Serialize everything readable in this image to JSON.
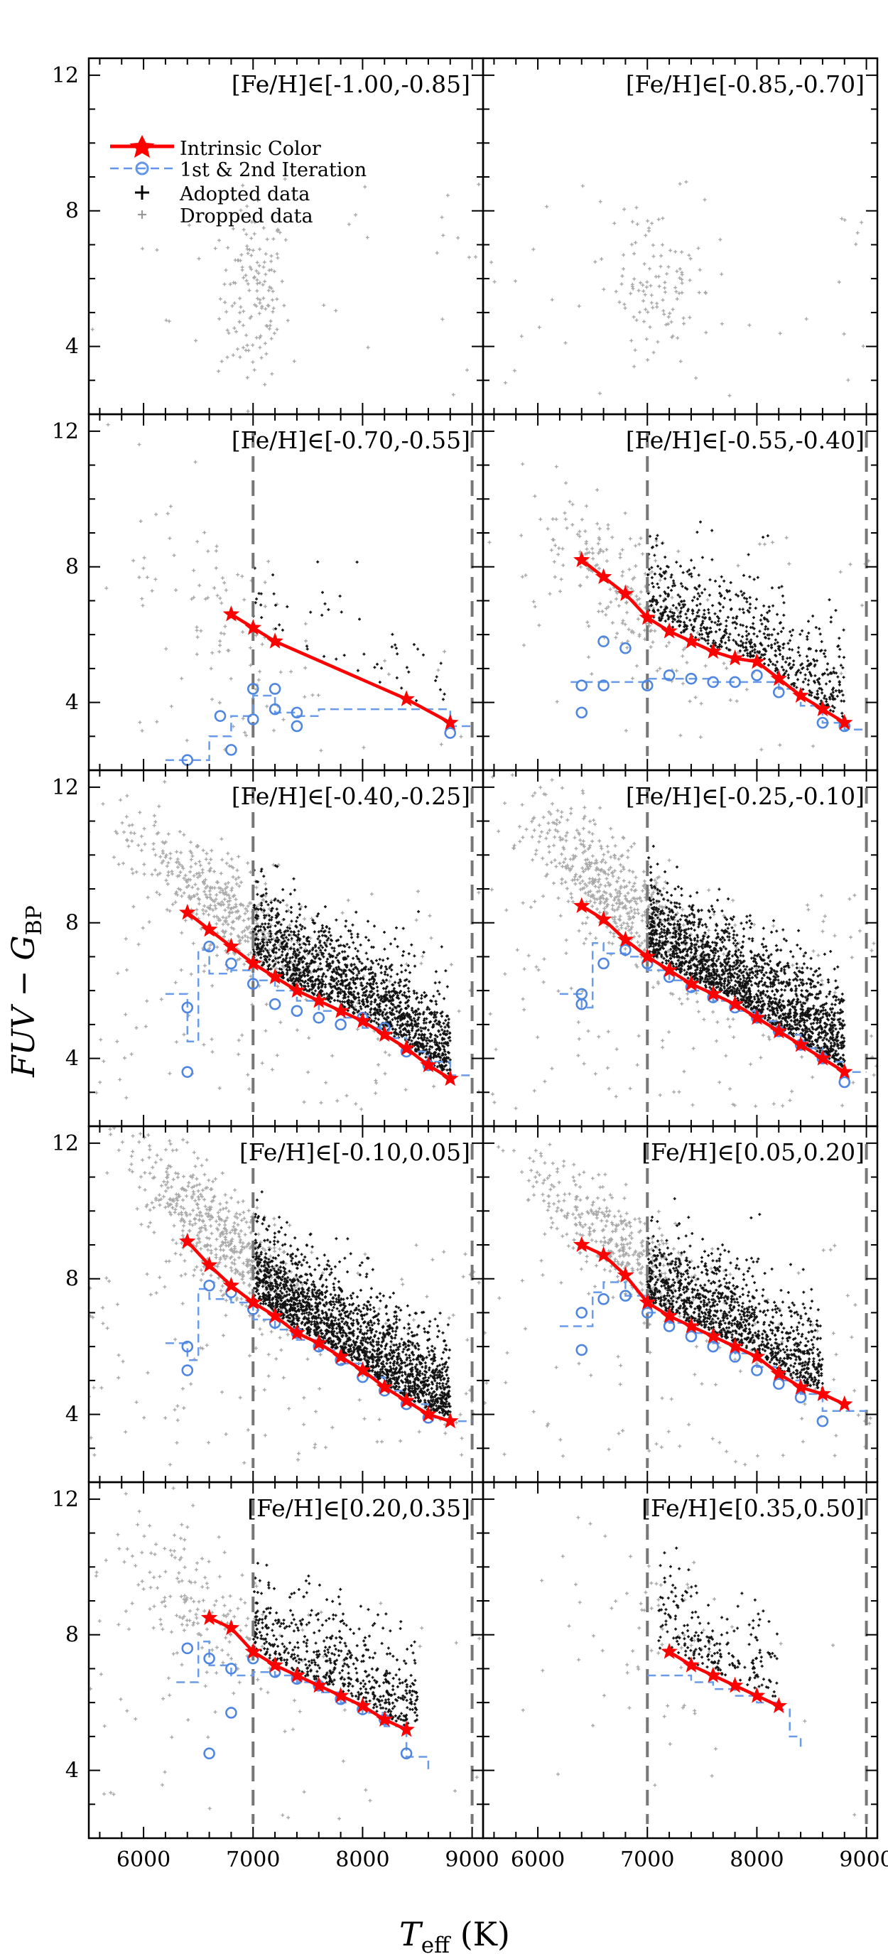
{
  "chart_data": {
    "type": "scatter",
    "layout": "5 rows x 2 columns, shared axes",
    "xlabel_main": "T",
    "xlabel_sub": "eff",
    "xlabel_unit": "(K)",
    "ylabel_main": "FUV − G",
    "ylabel_sub": "BP",
    "xlim": [
      5500,
      9100
    ],
    "ylim": [
      2.0,
      12.5
    ],
    "x_ticks": [
      "6000",
      "7000",
      "8000",
      "9000"
    ],
    "y_ticks": [
      "4",
      "8",
      "12"
    ],
    "vertical_cuts": [
      7000,
      9000
    ],
    "legend": {
      "location": "upper-left of first panel",
      "entries": [
        {
          "label": "Intrinsic Color",
          "color": "#ff0000",
          "marker": "star"
        },
        {
          "label": "1st & 2nd Iteration",
          "color": "#6495ed",
          "marker": "open-circle"
        },
        {
          "label": "Adopted data",
          "color": "#000000",
          "marker": "plus"
        },
        {
          "label": "Dropped data",
          "color": "#a0a0a0",
          "marker": "small-plus"
        }
      ]
    },
    "panels": [
      {
        "label": "[Fe/H]∈[-1.00,-0.85]",
        "intrinsic": {
          "x": [],
          "y": []
        },
        "iter_circles": {
          "x": [],
          "y": []
        },
        "iter_steps": {
          "x": [],
          "y": []
        },
        "dropped": {
          "center": [
            7000,
            5.5
          ],
          "spread": [
            150,
            1.3
          ],
          "count": 140,
          "slope": 0
        },
        "adopted": null,
        "show_cuts": false
      },
      {
        "label": "[Fe/H]∈[-0.85,-0.70]",
        "intrinsic": {
          "x": [],
          "y": []
        },
        "iter_circles": {
          "x": [],
          "y": []
        },
        "iter_steps": {
          "x": [],
          "y": []
        },
        "dropped": {
          "center": [
            7100,
            5.8
          ],
          "spread": [
            250,
            1.1
          ],
          "count": 120,
          "slope": 0
        },
        "adopted": null,
        "show_cuts": false
      },
      {
        "label": "[Fe/H]∈[-0.70,-0.55]",
        "intrinsic": {
          "x": [
            6800,
            7000,
            7200,
            8400,
            8800
          ],
          "y": [
            6.6,
            6.2,
            5.8,
            4.1,
            3.4
          ]
        },
        "iter_circles": {
          "x": [
            6400,
            6700,
            6800,
            7000,
            7000,
            7200,
            7200,
            7400,
            7400,
            8800
          ],
          "y": [
            2.3,
            3.6,
            2.6,
            4.4,
            3.5,
            4.4,
            3.8,
            3.7,
            3.3,
            3.1
          ]
        },
        "iter_steps": {
          "x": [
            6200,
            6500,
            6600,
            6800,
            7000,
            7200,
            7400,
            7600,
            8800,
            9000
          ],
          "y": [
            2.3,
            2.3,
            3.0,
            3.6,
            4.2,
            3.7,
            3.6,
            3.8,
            3.3,
            3.3
          ]
        },
        "dropped": {
          "center": [
            6700,
            6.5
          ],
          "spread": [
            400,
            1.8
          ],
          "count": 90,
          "slope": -2.4
        },
        "adopted": {
          "xrange": [
            7000,
            8800
          ],
          "count": 55
        },
        "show_cuts": true
      },
      {
        "label": "[Fe/H]∈[-0.55,-0.40]",
        "intrinsic": {
          "x": [
            6400,
            6600,
            6800,
            7000,
            7200,
            7400,
            7600,
            7800,
            8000,
            8200,
            8400,
            8600,
            8800
          ],
          "y": [
            8.2,
            7.7,
            7.2,
            6.5,
            6.1,
            5.8,
            5.5,
            5.3,
            5.2,
            4.7,
            4.2,
            3.8,
            3.4
          ]
        },
        "iter_circles": {
          "x": [
            6400,
            6400,
            6600,
            6600,
            6800,
            7000,
            7200,
            7400,
            7600,
            7800,
            8000,
            8200,
            8600,
            8800
          ],
          "y": [
            4.5,
            3.7,
            5.8,
            4.5,
            5.6,
            4.5,
            4.8,
            4.7,
            4.6,
            4.6,
            4.8,
            4.3,
            3.4,
            3.3
          ]
        },
        "iter_steps": {
          "x": [
            6300,
            6500,
            6700,
            7000,
            7200,
            7400,
            7600,
            7800,
            8000,
            8200,
            8400,
            8600,
            8800,
            9000
          ],
          "y": [
            4.6,
            4.6,
            4.6,
            4.7,
            4.7,
            4.7,
            4.6,
            4.6,
            4.6,
            4.4,
            3.9,
            3.4,
            3.2,
            3.2
          ]
        },
        "dropped": {
          "center": [
            6700,
            7.5
          ],
          "spread": [
            400,
            0.9
          ],
          "count": 200,
          "slope": -2.2
        },
        "adopted": {
          "xrange": [
            7000,
            8800
          ],
          "count": 650
        },
        "show_cuts": true
      },
      {
        "label": "[Fe/H]∈[-0.40,-0.25]",
        "intrinsic": {
          "x": [
            6400,
            6600,
            6800,
            7000,
            7200,
            7400,
            7600,
            7800,
            8000,
            8200,
            8400,
            8600,
            8800
          ],
          "y": [
            8.3,
            7.8,
            7.3,
            6.8,
            6.4,
            6.0,
            5.7,
            5.4,
            5.1,
            4.7,
            4.3,
            3.8,
            3.4
          ]
        },
        "iter_circles": {
          "x": [
            6400,
            6400,
            6600,
            6800,
            7000,
            7200,
            7400,
            7600,
            7800,
            8000,
            8200,
            8400,
            8600
          ],
          "y": [
            5.5,
            3.6,
            7.3,
            6.8,
            6.2,
            5.6,
            5.4,
            5.2,
            5.0,
            5.2,
            4.9,
            4.2,
            3.8
          ]
        },
        "iter_steps": {
          "x": [
            6200,
            6400,
            6500,
            6600,
            6800,
            7000,
            7200,
            7400,
            7600,
            7800,
            8000,
            8200,
            8400,
            8600,
            8800,
            9000
          ],
          "y": [
            5.9,
            4.5,
            7.2,
            6.5,
            6.6,
            6.3,
            6.0,
            5.7,
            5.4,
            5.2,
            4.9,
            4.6,
            4.2,
            3.9,
            3.5,
            3.5
          ]
        },
        "dropped": {
          "center": [
            6700,
            8.6
          ],
          "spread": [
            400,
            0.7
          ],
          "count": 450,
          "slope": -2.4
        },
        "adopted": {
          "xrange": [
            7000,
            8800
          ],
          "count": 1500
        },
        "show_cuts": true
      },
      {
        "label": "[Fe/H]∈[-0.25,-0.10]",
        "intrinsic": {
          "x": [
            6400,
            6600,
            6800,
            7000,
            7200,
            7400,
            7600,
            7800,
            8000,
            8200,
            8400,
            8600,
            8800
          ],
          "y": [
            8.5,
            8.1,
            7.5,
            7.0,
            6.6,
            6.2,
            5.9,
            5.6,
            5.2,
            4.8,
            4.4,
            4.0,
            3.6
          ]
        },
        "iter_circles": {
          "x": [
            6400,
            6400,
            6600,
            6800,
            7000,
            7200,
            7400,
            7600,
            7800,
            8000,
            8200,
            8400,
            8600,
            8800
          ],
          "y": [
            5.9,
            5.6,
            6.8,
            7.2,
            6.8,
            6.4,
            6.1,
            5.8,
            5.5,
            5.2,
            4.8,
            4.4,
            4.0,
            3.3
          ]
        },
        "iter_steps": {
          "x": [
            6200,
            6400,
            6500,
            6600,
            6800,
            7000,
            7200,
            7400,
            7600,
            7800,
            8000,
            8200,
            8400,
            8600,
            8800,
            9000
          ],
          "y": [
            5.9,
            5.5,
            7.4,
            7.1,
            7.0,
            6.6,
            6.3,
            6.0,
            5.7,
            5.4,
            5.1,
            4.7,
            4.3,
            3.9,
            3.6,
            3.6
          ]
        },
        "dropped": {
          "center": [
            6700,
            8.9
          ],
          "spread": [
            400,
            0.8
          ],
          "count": 550,
          "slope": -2.4
        },
        "adopted": {
          "xrange": [
            7000,
            8800
          ],
          "count": 1800
        },
        "show_cuts": true
      },
      {
        "label": "[Fe/H]∈[-0.10,0.05]",
        "intrinsic": {
          "x": [
            6400,
            6600,
            6800,
            7000,
            7200,
            7400,
            7600,
            7800,
            8000,
            8200,
            8400,
            8600,
            8800
          ],
          "y": [
            9.1,
            8.4,
            7.8,
            7.3,
            6.9,
            6.4,
            6.1,
            5.7,
            5.3,
            4.8,
            4.4,
            4.0,
            3.8
          ]
        },
        "iter_circles": {
          "x": [
            6400,
            6400,
            6600,
            6800,
            7000,
            7200,
            7400,
            7600,
            7800,
            8000,
            8200,
            8400,
            8600
          ],
          "y": [
            6.0,
            5.3,
            7.8,
            7.6,
            7.1,
            6.7,
            6.4,
            6.0,
            5.6,
            5.1,
            4.7,
            4.3,
            3.9
          ]
        },
        "iter_steps": {
          "x": [
            6200,
            6400,
            6500,
            6600,
            6800,
            7000,
            7200,
            7400,
            7600,
            7800,
            8000,
            8200,
            8400,
            8600,
            8800,
            9000
          ],
          "y": [
            6.1,
            5.6,
            7.7,
            7.4,
            7.3,
            6.8,
            6.5,
            6.2,
            5.9,
            5.5,
            5.1,
            4.7,
            4.3,
            3.9,
            3.8,
            3.8
          ]
        },
        "dropped": {
          "center": [
            6700,
            9.3
          ],
          "spread": [
            400,
            0.8
          ],
          "count": 550,
          "slope": -2.4
        },
        "adopted": {
          "xrange": [
            7000,
            8800
          ],
          "count": 1900
        },
        "show_cuts": true
      },
      {
        "label": "[Fe/H]∈[0.05,0.20]",
        "intrinsic": {
          "x": [
            6400,
            6600,
            6800,
            7000,
            7200,
            7400,
            7600,
            7800,
            8000,
            8200,
            8400,
            8600,
            8800
          ],
          "y": [
            9.0,
            8.7,
            8.1,
            7.3,
            6.9,
            6.6,
            6.3,
            6.0,
            5.7,
            5.2,
            4.8,
            4.6,
            4.3
          ]
        },
        "iter_circles": {
          "x": [
            6400,
            6400,
            6600,
            6800,
            7000,
            7200,
            7400,
            7600,
            7800,
            8000,
            8200,
            8400,
            8600
          ],
          "y": [
            7.0,
            5.9,
            7.4,
            7.5,
            7.0,
            6.6,
            6.3,
            6.0,
            5.7,
            5.3,
            4.9,
            4.5,
            3.8
          ]
        },
        "iter_steps": {
          "x": [
            6200,
            6400,
            6500,
            6600,
            6800,
            7000,
            7200,
            7400,
            7600,
            7800,
            8000,
            8200,
            8400,
            8600,
            8800,
            9000
          ],
          "y": [
            6.6,
            6.6,
            7.6,
            7.9,
            7.5,
            7.0,
            6.7,
            6.4,
            6.1,
            5.8,
            5.4,
            5.0,
            4.6,
            4.1,
            4.1,
            4.1
          ]
        },
        "dropped": {
          "center": [
            6700,
            9.2
          ],
          "spread": [
            400,
            0.7
          ],
          "count": 400,
          "slope": -2.4
        },
        "adopted": {
          "xrange": [
            7000,
            8600
          ],
          "count": 1100
        },
        "show_cuts": true
      },
      {
        "label": "[Fe/H]∈[0.20,0.35]",
        "intrinsic": {
          "x": [
            6600,
            6800,
            7000,
            7200,
            7400,
            7600,
            7800,
            8000,
            8200,
            8400
          ],
          "y": [
            8.5,
            8.2,
            7.5,
            7.1,
            6.8,
            6.5,
            6.2,
            5.9,
            5.5,
            5.2
          ]
        },
        "iter_circles": {
          "x": [
            6400,
            6600,
            6600,
            6800,
            6800,
            7000,
            7200,
            7400,
            7600,
            7800,
            8000,
            8200,
            8400
          ],
          "y": [
            7.6,
            7.3,
            4.5,
            7.0,
            5.7,
            7.3,
            6.9,
            6.7,
            6.5,
            6.1,
            5.8,
            5.5,
            4.5
          ]
        },
        "iter_steps": {
          "x": [
            6300,
            6500,
            6600,
            6800,
            7000,
            7200,
            7400,
            7600,
            7800,
            8000,
            8200,
            8400,
            8600
          ],
          "y": [
            6.6,
            7.8,
            7.1,
            6.8,
            6.9,
            6.8,
            6.6,
            6.3,
            6.0,
            5.7,
            5.3,
            4.4,
            4.0
          ]
        },
        "dropped": {
          "center": [
            6600,
            8.8
          ],
          "spread": [
            450,
            1.0
          ],
          "count": 180,
          "slope": -2.0
        },
        "adopted": {
          "xrange": [
            7000,
            8500
          ],
          "count": 550
        },
        "show_cuts": true
      },
      {
        "label": "[Fe/H]∈[0.35,0.50]",
        "intrinsic": {
          "x": [
            7200,
            7400,
            7600,
            7800,
            8000,
            8200
          ],
          "y": [
            7.5,
            7.1,
            6.8,
            6.5,
            6.2,
            5.9
          ]
        },
        "iter_circles": {
          "x": [],
          "y": []
        },
        "iter_steps": {
          "x": [
            7000,
            7200,
            7400,
            7600,
            7800,
            8000,
            8200,
            8300,
            8400
          ],
          "y": [
            6.8,
            6.8,
            6.6,
            6.4,
            6.2,
            6.0,
            5.8,
            5.0,
            4.6
          ]
        },
        "dropped": {
          "center": [
            7100,
            8.0
          ],
          "spread": [
            500,
            1.5
          ],
          "count": 60,
          "slope": -1.5
        },
        "adopted": {
          "xrange": [
            7100,
            8200
          ],
          "count": 220
        },
        "show_cuts": true
      }
    ]
  }
}
